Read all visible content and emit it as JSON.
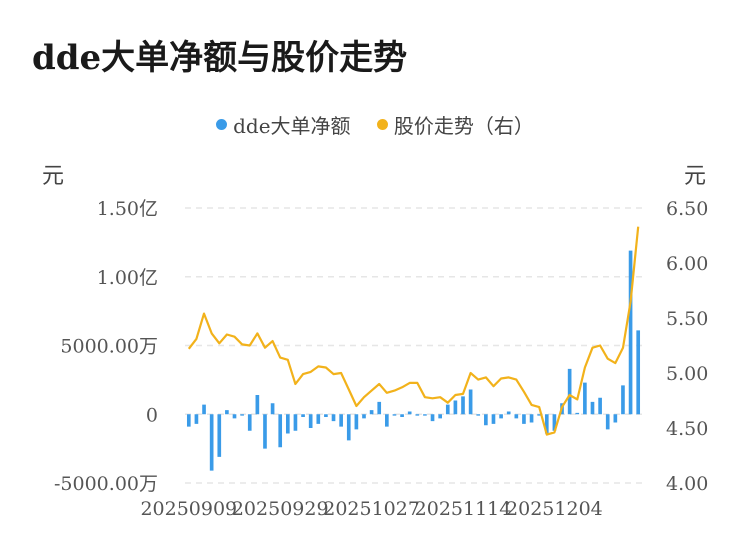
{
  "title": "dde大单净额与股价走势",
  "legend": {
    "series1": "dde大单净额",
    "series2": "股价走势（右）"
  },
  "units": {
    "left": "元",
    "right": "元"
  },
  "colors": {
    "bar": "#3a9be8",
    "line": "#f2b21b",
    "grid": "#e6e6e6"
  },
  "chart_data": {
    "type": "bar+line",
    "left_axis": {
      "ticks": [
        -5000,
        0,
        5000,
        10000,
        15000
      ],
      "tick_labels": [
        "-5000.00万",
        "0",
        "5000.00万",
        "1.00亿",
        "1.50亿"
      ],
      "ylim": [
        -5000,
        15000
      ],
      "unit": "万元"
    },
    "right_axis": {
      "ticks": [
        4.0,
        4.5,
        5.0,
        5.5,
        6.0,
        6.5
      ],
      "tick_labels": [
        "4.00",
        "4.50",
        "5.00",
        "5.50",
        "6.00",
        "6.50"
      ],
      "ylim": [
        4.0,
        6.5
      ]
    },
    "x_tick_labels": [
      "20250909",
      "20250929",
      "20251027",
      "20251114",
      "20251204"
    ],
    "x_tick_index": [
      0,
      12,
      24,
      36,
      48
    ],
    "series": [
      {
        "name": "dde大单净额",
        "type": "bar",
        "values": [
          -900,
          -700,
          700,
          -4100,
          -3100,
          300,
          -300,
          -100,
          -1200,
          1400,
          -2500,
          800,
          -2400,
          -1400,
          -1200,
          -200,
          -1000,
          -700,
          -200,
          -500,
          -900,
          -1900,
          -1100,
          -300,
          300,
          900,
          -900,
          -100,
          -200,
          200,
          -100,
          -100,
          -500,
          -300,
          700,
          1000,
          1300,
          1800,
          -100,
          -800,
          -700,
          -300,
          200,
          -300,
          -700,
          -600,
          -100,
          -1400,
          -1200,
          800,
          3300,
          100,
          2300,
          900,
          1200,
          -1100,
          -600,
          2100,
          11900,
          6100
        ]
      },
      {
        "name": "股价走势（右）",
        "type": "line",
        "values": [
          5.22,
          5.31,
          5.54,
          5.36,
          5.27,
          5.35,
          5.33,
          5.26,
          5.25,
          5.36,
          5.23,
          5.29,
          5.14,
          5.12,
          4.9,
          4.99,
          5.01,
          5.06,
          5.05,
          4.99,
          5.0,
          4.85,
          4.7,
          4.78,
          4.84,
          4.9,
          4.82,
          4.84,
          4.87,
          4.91,
          4.91,
          4.78,
          4.77,
          4.78,
          4.73,
          4.8,
          4.81,
          5.0,
          4.94,
          4.96,
          4.88,
          4.95,
          4.96,
          4.94,
          4.83,
          4.71,
          4.69,
          4.44,
          4.46,
          4.69,
          4.8,
          4.76,
          5.05,
          5.23,
          5.25,
          5.13,
          5.09,
          5.23,
          5.65,
          6.33
        ]
      }
    ]
  }
}
